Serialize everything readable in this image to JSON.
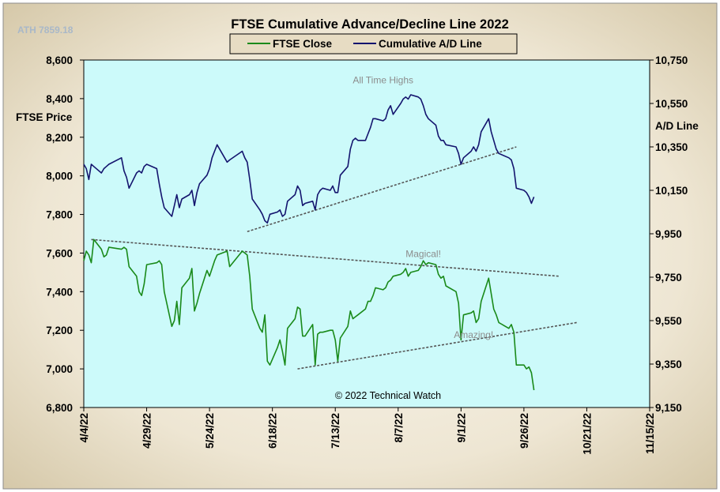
{
  "chart_data": {
    "type": "line",
    "title": "FTSE Cumulative  Advance/Decline Line 2022",
    "watermark": "ATH 7859.18",
    "copyright": "© 2022 Technical Watch",
    "ylabel_left": "FTSE Price",
    "ylabel_right": "A/D Line",
    "ylim_left": [
      6800,
      8600
    ],
    "ylim_right": [
      9150,
      10750
    ],
    "yticks_left": [
      "8,600",
      "8,400",
      "8,200",
      "8,000",
      "7,800",
      "7,600",
      "7,400",
      "7,200",
      "7,000",
      "6,800"
    ],
    "yticks_right": [
      "10,750",
      "10,550",
      "10,350",
      "10,150",
      "9,950",
      "9,750",
      "9,550",
      "9,350",
      "9,150"
    ],
    "xticks": [
      "4/4/22",
      "4/29/22",
      "5/24/22",
      "6/18/22",
      "7/13/22",
      "8/7/22",
      "9/1/22",
      "9/26/22",
      "10/21/22",
      "11/15/22"
    ],
    "xlim": [
      "2022-04-04",
      "2022-11-15"
    ],
    "legend_position": "top-center",
    "grid": false,
    "colors": {
      "ftse": "#1a8a1a",
      "ad": "#14146e",
      "plot_bg": "#ccfafa",
      "frame_bg": "#e6dcc6",
      "trend": "#555555",
      "anno": "#8c8c8c"
    },
    "series": [
      {
        "name": "FTSE Close",
        "axis": "left",
        "values": [
          [
            "2022-04-04",
            7560
          ],
          [
            "2022-04-05",
            7610
          ],
          [
            "2022-04-06",
            7590
          ],
          [
            "2022-04-07",
            7550
          ],
          [
            "2022-04-08",
            7670
          ],
          [
            "2022-04-11",
            7620
          ],
          [
            "2022-04-12",
            7580
          ],
          [
            "2022-04-13",
            7590
          ],
          [
            "2022-04-14",
            7630
          ],
          [
            "2022-04-19",
            7620
          ],
          [
            "2022-04-20",
            7630
          ],
          [
            "2022-04-21",
            7620
          ],
          [
            "2022-04-22",
            7530
          ],
          [
            "2022-04-25",
            7480
          ],
          [
            "2022-04-26",
            7400
          ],
          [
            "2022-04-27",
            7380
          ],
          [
            "2022-04-28",
            7440
          ],
          [
            "2022-04-29",
            7540
          ],
          [
            "2022-05-03",
            7550
          ],
          [
            "2022-05-04",
            7560
          ],
          [
            "2022-05-05",
            7540
          ],
          [
            "2022-05-06",
            7400
          ],
          [
            "2022-05-09",
            7220
          ],
          [
            "2022-05-10",
            7250
          ],
          [
            "2022-05-11",
            7350
          ],
          [
            "2022-05-12",
            7230
          ],
          [
            "2022-05-13",
            7420
          ],
          [
            "2022-05-16",
            7470
          ],
          [
            "2022-05-17",
            7520
          ],
          [
            "2022-05-18",
            7300
          ],
          [
            "2022-05-19",
            7340
          ],
          [
            "2022-05-20",
            7390
          ],
          [
            "2022-05-23",
            7510
          ],
          [
            "2022-05-24",
            7480
          ],
          [
            "2022-05-25",
            7520
          ],
          [
            "2022-05-26",
            7560
          ],
          [
            "2022-05-27",
            7590
          ],
          [
            "2022-05-31",
            7610
          ],
          [
            "2022-06-01",
            7530
          ],
          [
            "2022-06-06",
            7610
          ],
          [
            "2022-06-07",
            7600
          ],
          [
            "2022-06-08",
            7590
          ],
          [
            "2022-06-09",
            7480
          ],
          [
            "2022-06-10",
            7310
          ],
          [
            "2022-06-13",
            7210
          ],
          [
            "2022-06-14",
            7190
          ],
          [
            "2022-06-15",
            7280
          ],
          [
            "2022-06-16",
            7040
          ],
          [
            "2022-06-17",
            7020
          ],
          [
            "2022-06-20",
            7110
          ],
          [
            "2022-06-21",
            7150
          ],
          [
            "2022-06-22",
            7090
          ],
          [
            "2022-06-23",
            7020
          ],
          [
            "2022-06-24",
            7210
          ],
          [
            "2022-06-27",
            7260
          ],
          [
            "2022-06-28",
            7320
          ],
          [
            "2022-06-29",
            7310
          ],
          [
            "2022-06-30",
            7170
          ],
          [
            "2022-07-01",
            7170
          ],
          [
            "2022-07-04",
            7230
          ],
          [
            "2022-07-05",
            7020
          ],
          [
            "2022-07-06",
            7180
          ],
          [
            "2022-07-07",
            7190
          ],
          [
            "2022-07-08",
            7190
          ],
          [
            "2022-07-11",
            7200
          ],
          [
            "2022-07-12",
            7200
          ],
          [
            "2022-07-13",
            7150
          ],
          [
            "2022-07-14",
            7040
          ],
          [
            "2022-07-15",
            7160
          ],
          [
            "2022-07-18",
            7220
          ],
          [
            "2022-07-19",
            7300
          ],
          [
            "2022-07-20",
            7260
          ],
          [
            "2022-07-21",
            7270
          ],
          [
            "2022-07-22",
            7280
          ],
          [
            "2022-07-25",
            7310
          ],
          [
            "2022-07-26",
            7350
          ],
          [
            "2022-07-27",
            7350
          ],
          [
            "2022-07-28",
            7380
          ],
          [
            "2022-07-29",
            7420
          ],
          [
            "2022-08-01",
            7410
          ],
          [
            "2022-08-02",
            7420
          ],
          [
            "2022-08-03",
            7450
          ],
          [
            "2022-08-04",
            7460
          ],
          [
            "2022-08-05",
            7480
          ],
          [
            "2022-08-08",
            7490
          ],
          [
            "2022-08-09",
            7500
          ],
          [
            "2022-08-10",
            7520
          ],
          [
            "2022-08-11",
            7480
          ],
          [
            "2022-08-12",
            7500
          ],
          [
            "2022-08-15",
            7510
          ],
          [
            "2022-08-16",
            7530
          ],
          [
            "2022-08-17",
            7560
          ],
          [
            "2022-08-18",
            7540
          ],
          [
            "2022-08-19",
            7550
          ],
          [
            "2022-08-22",
            7540
          ],
          [
            "2022-08-23",
            7490
          ],
          [
            "2022-08-24",
            7470
          ],
          [
            "2022-08-25",
            7480
          ],
          [
            "2022-08-26",
            7430
          ],
          [
            "2022-08-30",
            7400
          ],
          [
            "2022-08-31",
            7340
          ],
          [
            "2022-09-01",
            7150
          ],
          [
            "2022-09-02",
            7280
          ],
          [
            "2022-09-05",
            7290
          ],
          [
            "2022-09-06",
            7300
          ],
          [
            "2022-09-07",
            7240
          ],
          [
            "2022-09-08",
            7260
          ],
          [
            "2022-09-09",
            7350
          ],
          [
            "2022-09-12",
            7470
          ],
          [
            "2022-09-13",
            7390
          ],
          [
            "2022-09-14",
            7310
          ],
          [
            "2022-09-15",
            7280
          ],
          [
            "2022-09-16",
            7240
          ],
          [
            "2022-09-20",
            7210
          ],
          [
            "2022-09-21",
            7230
          ],
          [
            "2022-09-22",
            7190
          ],
          [
            "2022-09-23",
            7020
          ],
          [
            "2022-09-26",
            7020
          ],
          [
            "2022-09-27",
            7000
          ],
          [
            "2022-09-28",
            7010
          ],
          [
            "2022-09-29",
            6980
          ],
          [
            "2022-09-30",
            6890
          ]
        ]
      },
      {
        "name": "Cumulative A/D Line",
        "axis": "right",
        "values": [
          [
            "2022-04-04",
            10270
          ],
          [
            "2022-04-05",
            10250
          ],
          [
            "2022-04-06",
            10200
          ],
          [
            "2022-04-07",
            10270
          ],
          [
            "2022-04-08",
            10260
          ],
          [
            "2022-04-11",
            10230
          ],
          [
            "2022-04-12",
            10250
          ],
          [
            "2022-04-13",
            10260
          ],
          [
            "2022-04-14",
            10270
          ],
          [
            "2022-04-19",
            10300
          ],
          [
            "2022-04-20",
            10240
          ],
          [
            "2022-04-21",
            10210
          ],
          [
            "2022-04-22",
            10160
          ],
          [
            "2022-04-25",
            10230
          ],
          [
            "2022-04-26",
            10240
          ],
          [
            "2022-04-27",
            10230
          ],
          [
            "2022-04-28",
            10260
          ],
          [
            "2022-04-29",
            10270
          ],
          [
            "2022-05-03",
            10250
          ],
          [
            "2022-05-04",
            10180
          ],
          [
            "2022-05-05",
            10120
          ],
          [
            "2022-05-06",
            10070
          ],
          [
            "2022-05-09",
            10030
          ],
          [
            "2022-05-10",
            10080
          ],
          [
            "2022-05-11",
            10130
          ],
          [
            "2022-05-12",
            10070
          ],
          [
            "2022-05-13",
            10110
          ],
          [
            "2022-05-16",
            10130
          ],
          [
            "2022-05-17",
            10150
          ],
          [
            "2022-05-18",
            10080
          ],
          [
            "2022-05-19",
            10140
          ],
          [
            "2022-05-20",
            10180
          ],
          [
            "2022-05-23",
            10220
          ],
          [
            "2022-05-24",
            10250
          ],
          [
            "2022-05-25",
            10300
          ],
          [
            "2022-05-26",
            10330
          ],
          [
            "2022-05-27",
            10360
          ],
          [
            "2022-05-31",
            10280
          ],
          [
            "2022-06-01",
            10290
          ],
          [
            "2022-06-06",
            10330
          ],
          [
            "2022-06-07",
            10300
          ],
          [
            "2022-06-08",
            10280
          ],
          [
            "2022-06-09",
            10200
          ],
          [
            "2022-06-10",
            10110
          ],
          [
            "2022-06-13",
            10060
          ],
          [
            "2022-06-14",
            10040
          ],
          [
            "2022-06-15",
            10010
          ],
          [
            "2022-06-16",
            10000
          ],
          [
            "2022-06-17",
            10040
          ],
          [
            "2022-06-20",
            10050
          ],
          [
            "2022-06-21",
            10060
          ],
          [
            "2022-06-22",
            10030
          ],
          [
            "2022-06-23",
            10040
          ],
          [
            "2022-06-24",
            10100
          ],
          [
            "2022-06-27",
            10130
          ],
          [
            "2022-06-28",
            10170
          ],
          [
            "2022-06-29",
            10150
          ],
          [
            "2022-06-30",
            10080
          ],
          [
            "2022-07-01",
            10090
          ],
          [
            "2022-07-04",
            10100
          ],
          [
            "2022-07-05",
            10060
          ],
          [
            "2022-07-06",
            10130
          ],
          [
            "2022-07-07",
            10150
          ],
          [
            "2022-07-08",
            10160
          ],
          [
            "2022-07-11",
            10150
          ],
          [
            "2022-07-12",
            10170
          ],
          [
            "2022-07-13",
            10140
          ],
          [
            "2022-07-14",
            10140
          ],
          [
            "2022-07-15",
            10220
          ],
          [
            "2022-07-18",
            10260
          ],
          [
            "2022-07-19",
            10340
          ],
          [
            "2022-07-20",
            10380
          ],
          [
            "2022-07-21",
            10390
          ],
          [
            "2022-07-22",
            10380
          ],
          [
            "2022-07-25",
            10380
          ],
          [
            "2022-07-26",
            10410
          ],
          [
            "2022-07-27",
            10440
          ],
          [
            "2022-07-28",
            10480
          ],
          [
            "2022-07-29",
            10480
          ],
          [
            "2022-08-01",
            10470
          ],
          [
            "2022-08-02",
            10480
          ],
          [
            "2022-08-03",
            10520
          ],
          [
            "2022-08-04",
            10540
          ],
          [
            "2022-08-05",
            10500
          ],
          [
            "2022-08-08",
            10550
          ],
          [
            "2022-08-09",
            10570
          ],
          [
            "2022-08-10",
            10580
          ],
          [
            "2022-08-11",
            10570
          ],
          [
            "2022-08-12",
            10590
          ],
          [
            "2022-08-15",
            10580
          ],
          [
            "2022-08-16",
            10570
          ],
          [
            "2022-08-17",
            10540
          ],
          [
            "2022-08-18",
            10500
          ],
          [
            "2022-08-19",
            10480
          ],
          [
            "2022-08-22",
            10450
          ],
          [
            "2022-08-23",
            10400
          ],
          [
            "2022-08-24",
            10380
          ],
          [
            "2022-08-25",
            10380
          ],
          [
            "2022-08-26",
            10360
          ],
          [
            "2022-08-30",
            10350
          ],
          [
            "2022-08-31",
            10320
          ],
          [
            "2022-09-01",
            10270
          ],
          [
            "2022-09-02",
            10300
          ],
          [
            "2022-09-05",
            10330
          ],
          [
            "2022-09-06",
            10350
          ],
          [
            "2022-09-07",
            10330
          ],
          [
            "2022-09-08",
            10360
          ],
          [
            "2022-09-09",
            10420
          ],
          [
            "2022-09-12",
            10480
          ],
          [
            "2022-09-13",
            10420
          ],
          [
            "2022-09-14",
            10380
          ],
          [
            "2022-09-15",
            10340
          ],
          [
            "2022-09-16",
            10320
          ],
          [
            "2022-09-20",
            10300
          ],
          [
            "2022-09-21",
            10290
          ],
          [
            "2022-09-22",
            10250
          ],
          [
            "2022-09-23",
            10160
          ],
          [
            "2022-09-26",
            10150
          ],
          [
            "2022-09-27",
            10140
          ],
          [
            "2022-09-28",
            10120
          ],
          [
            "2022-09-29",
            10090
          ],
          [
            "2022-09-30",
            10120
          ]
        ]
      }
    ],
    "trendlines": [
      {
        "axis": "right",
        "points": [
          [
            "2022-06-08",
            9960
          ],
          [
            "2022-09-23",
            10350
          ]
        ]
      },
      {
        "axis": "left",
        "points": [
          [
            "2022-04-07",
            7670
          ],
          [
            "2022-10-10",
            7480
          ]
        ]
      },
      {
        "axis": "left",
        "points": [
          [
            "2022-06-28",
            7000
          ],
          [
            "2022-10-17",
            7240
          ]
        ]
      }
    ],
    "annotations": [
      {
        "text": "All Time Highs",
        "x": "2022-08-01",
        "axis": "left",
        "y": 8480
      },
      {
        "text": "Magical!",
        "x": "2022-08-17",
        "axis": "left",
        "y": 7580
      },
      {
        "text": "Amazing!",
        "x": "2022-09-06",
        "axis": "left",
        "y": 7160
      }
    ]
  }
}
